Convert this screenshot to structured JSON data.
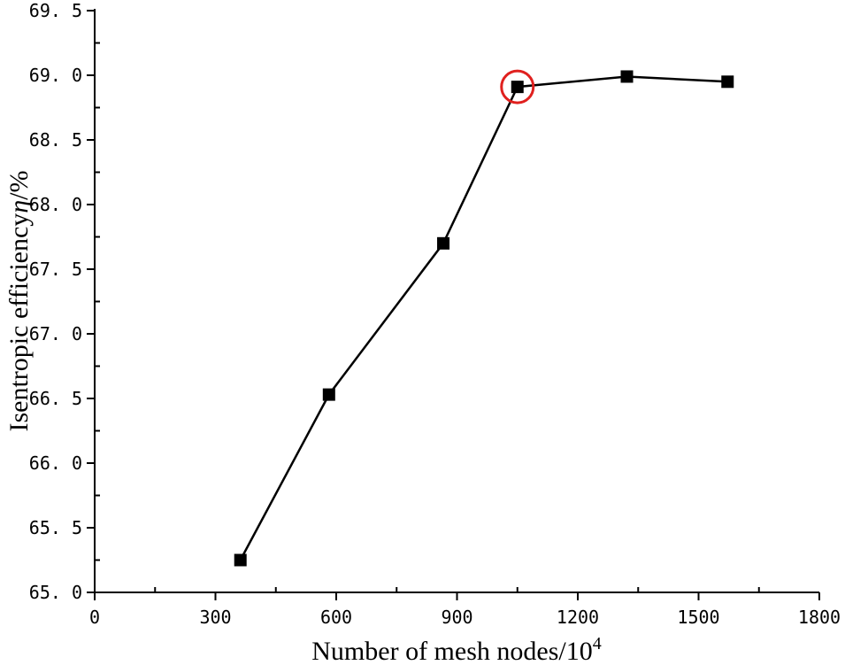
{
  "chart_data": {
    "type": "line",
    "xlabel": "Number of mesh nodes/10",
    "xlabel_sup": "4",
    "ylabel": "Isentropic efficiency",
    "ylabel_symbol": "η",
    "ylabel_unit": "/%",
    "xlim": [
      0,
      1800
    ],
    "ylim": [
      65.0,
      69.5
    ],
    "x_ticks": [
      0,
      300,
      600,
      900,
      1200,
      1500,
      1800
    ],
    "x_tick_labels": [
      "0",
      "300",
      "600",
      "900",
      "1200",
      "1500",
      "1800"
    ],
    "y_ticks": [
      65.0,
      65.5,
      66.0,
      66.5,
      67.0,
      67.5,
      68.0,
      68.5,
      69.0,
      69.5
    ],
    "y_tick_labels": [
      "65. 0",
      "65. 5",
      "66. 0",
      "66. 5",
      "67. 0",
      "67. 5",
      "68. 0",
      "68. 5",
      "69. 0",
      "69. 5"
    ],
    "grid": false,
    "series": [
      {
        "marker": "square",
        "color": "#000000",
        "x": [
          362,
          582,
          866,
          1050,
          1322,
          1572
        ],
        "y": [
          65.25,
          66.53,
          67.7,
          68.91,
          68.99,
          68.95
        ]
      }
    ],
    "highlight": {
      "point_index": 3,
      "shape": "circle",
      "color": "#e0201e"
    }
  }
}
